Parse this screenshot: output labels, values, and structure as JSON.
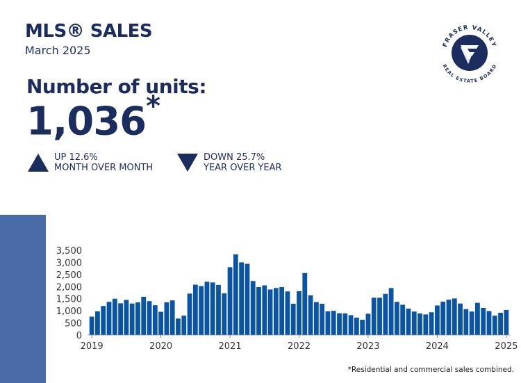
{
  "header": {
    "title": "MLS® SALES",
    "subtitle": "March 2025"
  },
  "summary": {
    "label": "Number of units:",
    "value": "1,036",
    "asterisk": "*"
  },
  "stats": [
    {
      "direction": "up",
      "line1": "UP 12.6%",
      "line2": "MONTH OVER MONTH"
    },
    {
      "direction": "down",
      "line1": "DOWN 25.7%",
      "line2": "YEAR OVER YEAR"
    }
  ],
  "logo": {
    "top_text": "FRASER VALLEY",
    "bottom_text": "REAL ESTATE BOARD",
    "emblem": "FV-icon"
  },
  "footnote": "*Residential and commercial sales combined.",
  "colors": {
    "bar": "#0a54a5",
    "navy": "#1b2d5e",
    "band": "#4a6aa8"
  },
  "chart_data": {
    "type": "bar",
    "title": "",
    "xlabel": "",
    "ylabel": "",
    "ylim": [
      0,
      3500
    ],
    "yticks": [
      0,
      500,
      1000,
      1500,
      2000,
      2500,
      3000,
      3500
    ],
    "ytick_labels": [
      "0",
      "500",
      "1,000",
      "1,500",
      "2,000",
      "2,500",
      "3,000",
      "3,500"
    ],
    "x_labels": [
      {
        "index": 0,
        "label": "2019"
      },
      {
        "index": 12,
        "label": "2020"
      },
      {
        "index": 24,
        "label": "2021"
      },
      {
        "index": 36,
        "label": "2022"
      },
      {
        "index": 48,
        "label": "2023"
      },
      {
        "index": 60,
        "label": "2024"
      },
      {
        "index": 72,
        "label": "2025"
      }
    ],
    "grid": false,
    "values": [
      760,
      980,
      1200,
      1370,
      1500,
      1310,
      1450,
      1300,
      1350,
      1580,
      1400,
      1230,
      960,
      1350,
      1430,
      680,
      800,
      1710,
      2080,
      2020,
      2200,
      2170,
      2070,
      1720,
      2800,
      3330,
      3000,
      2940,
      2230,
      1980,
      2050,
      1880,
      1940,
      1980,
      1800,
      1290,
      1810,
      2560,
      1640,
      1360,
      1290,
      980,
      1000,
      900,
      890,
      820,
      720,
      630,
      880,
      1540,
      1540,
      1700,
      1940,
      1370,
      1250,
      1090,
      970,
      890,
      850,
      940,
      1220,
      1380,
      1460,
      1510,
      1300,
      1070,
      970,
      1330,
      1120,
      990,
      800,
      920,
      1036
    ]
  }
}
